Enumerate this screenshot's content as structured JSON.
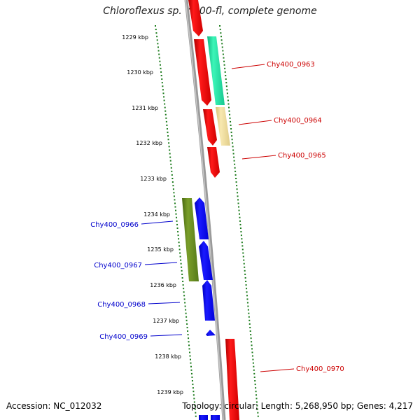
{
  "title": "Chloroflexus sp. Y-400-fl, complete genome",
  "footer": {
    "accession": "Accession: NC_012032",
    "summary": "Topology: circular; Length: 5,268,950 bp; Genes: 4,217"
  },
  "colors": {
    "backbone": "#808080",
    "tick_green": "#1a7a1a",
    "gene_red": "#ff0000",
    "gene_teal": "#20e8a8",
    "gene_khaki": "#f0dc96",
    "gene_olive": "#6b8e23",
    "gene_blue": "#0000ff",
    "label_red": "#cc0000",
    "label_blue": "#0000cc"
  },
  "kbp_labels": [
    "1229 kbp",
    "1230 kbp",
    "1231 kbp",
    "1232 kbp",
    "1233 kbp",
    "1234 kbp",
    "1235 kbp",
    "1236 kbp",
    "1237 kbp",
    "1238 kbp",
    "1239 kbp"
  ],
  "genes": [
    {
      "label": "Chy400_0963",
      "color": "#cc0000"
    },
    {
      "label": "Chy400_0964",
      "color": "#cc0000"
    },
    {
      "label": "Chy400_0965",
      "color": "#cc0000"
    },
    {
      "label": "Chy400_0966",
      "color": "#0000cc"
    },
    {
      "label": "Chy400_0967",
      "color": "#0000cc"
    },
    {
      "label": "Chy400_0968",
      "color": "#0000cc"
    },
    {
      "label": "Chy400_0969",
      "color": "#0000cc"
    },
    {
      "label": "Chy400_0970",
      "color": "#cc0000"
    }
  ]
}
